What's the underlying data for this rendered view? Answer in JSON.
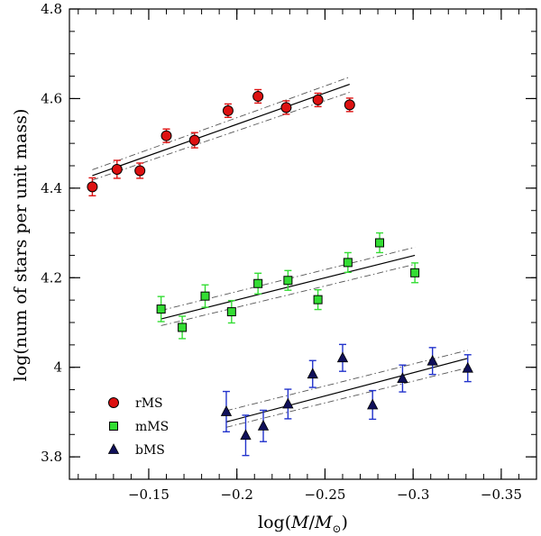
{
  "chart_data": {
    "type": "scatter",
    "xlabel_parts": [
      "log(",
      "M",
      "/",
      "M",
      "⊙",
      ")"
    ],
    "ylabel": "log(num of stars per unit mass)",
    "xlim": [
      -0.105,
      -0.37
    ],
    "ylim": [
      3.75,
      4.8
    ],
    "x_major_ticks": [
      -0.15,
      -0.2,
      -0.25,
      -0.3,
      -0.35
    ],
    "x_tick_labels": [
      "−0.15",
      "−0.2",
      "−0.25",
      "−0.3",
      "−0.35"
    ],
    "x_minor_step": 0.01,
    "y_major_ticks": [
      3.8,
      4.0,
      4.2,
      4.4,
      4.6,
      4.8
    ],
    "y_tick_labels": [
      "3.8",
      "4",
      "4.2",
      "4.4",
      "4.6",
      "4.8"
    ],
    "y_minor_step": 0.05,
    "legend_position": "bottom-left",
    "series": [
      {
        "name": "rMS",
        "marker": "circle",
        "fill": "#dd1111",
        "errcolor": "#dd1111",
        "x": [
          -0.118,
          -0.132,
          -0.145,
          -0.16,
          -0.176,
          -0.195,
          -0.212,
          -0.228,
          -0.246,
          -0.264
        ],
        "y": [
          4.403,
          4.442,
          4.439,
          4.517,
          4.507,
          4.573,
          4.605,
          4.58,
          4.597,
          4.586
        ],
        "err": [
          0.02,
          0.02,
          0.017,
          0.015,
          0.017,
          0.015,
          0.015,
          0.015,
          0.015,
          0.015
        ],
        "fit": {
          "x": [
            -0.118,
            -0.264
          ],
          "y": [
            4.428,
            4.632
          ]
        },
        "conf_upper": {
          "x": [
            -0.118,
            -0.264
          ],
          "y": [
            4.441,
            4.648
          ]
        },
        "conf_lower": {
          "x": [
            -0.118,
            -0.264
          ],
          "y": [
            4.418,
            4.614
          ]
        }
      },
      {
        "name": "mMS",
        "marker": "square",
        "fill": "#33dd33",
        "errcolor": "#33dd33",
        "x": [
          -0.157,
          -0.169,
          -0.182,
          -0.197,
          -0.212,
          -0.229,
          -0.246,
          -0.263,
          -0.281,
          -0.301
        ],
        "y": [
          4.13,
          4.089,
          4.159,
          4.124,
          4.187,
          4.194,
          4.151,
          4.234,
          4.278,
          4.211
        ],
        "err": [
          0.028,
          0.025,
          0.025,
          0.025,
          0.023,
          0.022,
          0.022,
          0.022,
          0.022,
          0.022
        ],
        "fit": {
          "x": [
            -0.157,
            -0.301
          ],
          "y": [
            4.108,
            4.25
          ]
        },
        "conf_upper": {
          "x": [
            -0.157,
            -0.301
          ],
          "y": [
            4.127,
            4.268
          ]
        },
        "conf_lower": {
          "x": [
            -0.157,
            -0.301
          ],
          "y": [
            4.093,
            4.23
          ]
        }
      },
      {
        "name": "bMS",
        "marker": "triangle",
        "fill": "#10105a",
        "errcolor": "#2233cc",
        "x": [
          -0.194,
          -0.205,
          -0.215,
          -0.229,
          -0.243,
          -0.26,
          -0.277,
          -0.294,
          -0.311,
          -0.331
        ],
        "y": [
          3.901,
          3.848,
          3.869,
          3.918,
          3.985,
          4.021,
          3.916,
          3.975,
          4.014,
          3.998
        ],
        "err": [
          0.045,
          0.045,
          0.035,
          0.033,
          0.03,
          0.03,
          0.032,
          0.03,
          0.03,
          0.03
        ],
        "fit": {
          "x": [
            -0.194,
            -0.331
          ],
          "y": [
            3.878,
            4.02
          ]
        },
        "conf_upper": {
          "x": [
            -0.194,
            -0.331
          ],
          "y": [
            3.903,
            4.038
          ]
        },
        "conf_lower": {
          "x": [
            -0.194,
            -0.331
          ],
          "y": [
            3.866,
            3.999
          ]
        }
      }
    ]
  }
}
